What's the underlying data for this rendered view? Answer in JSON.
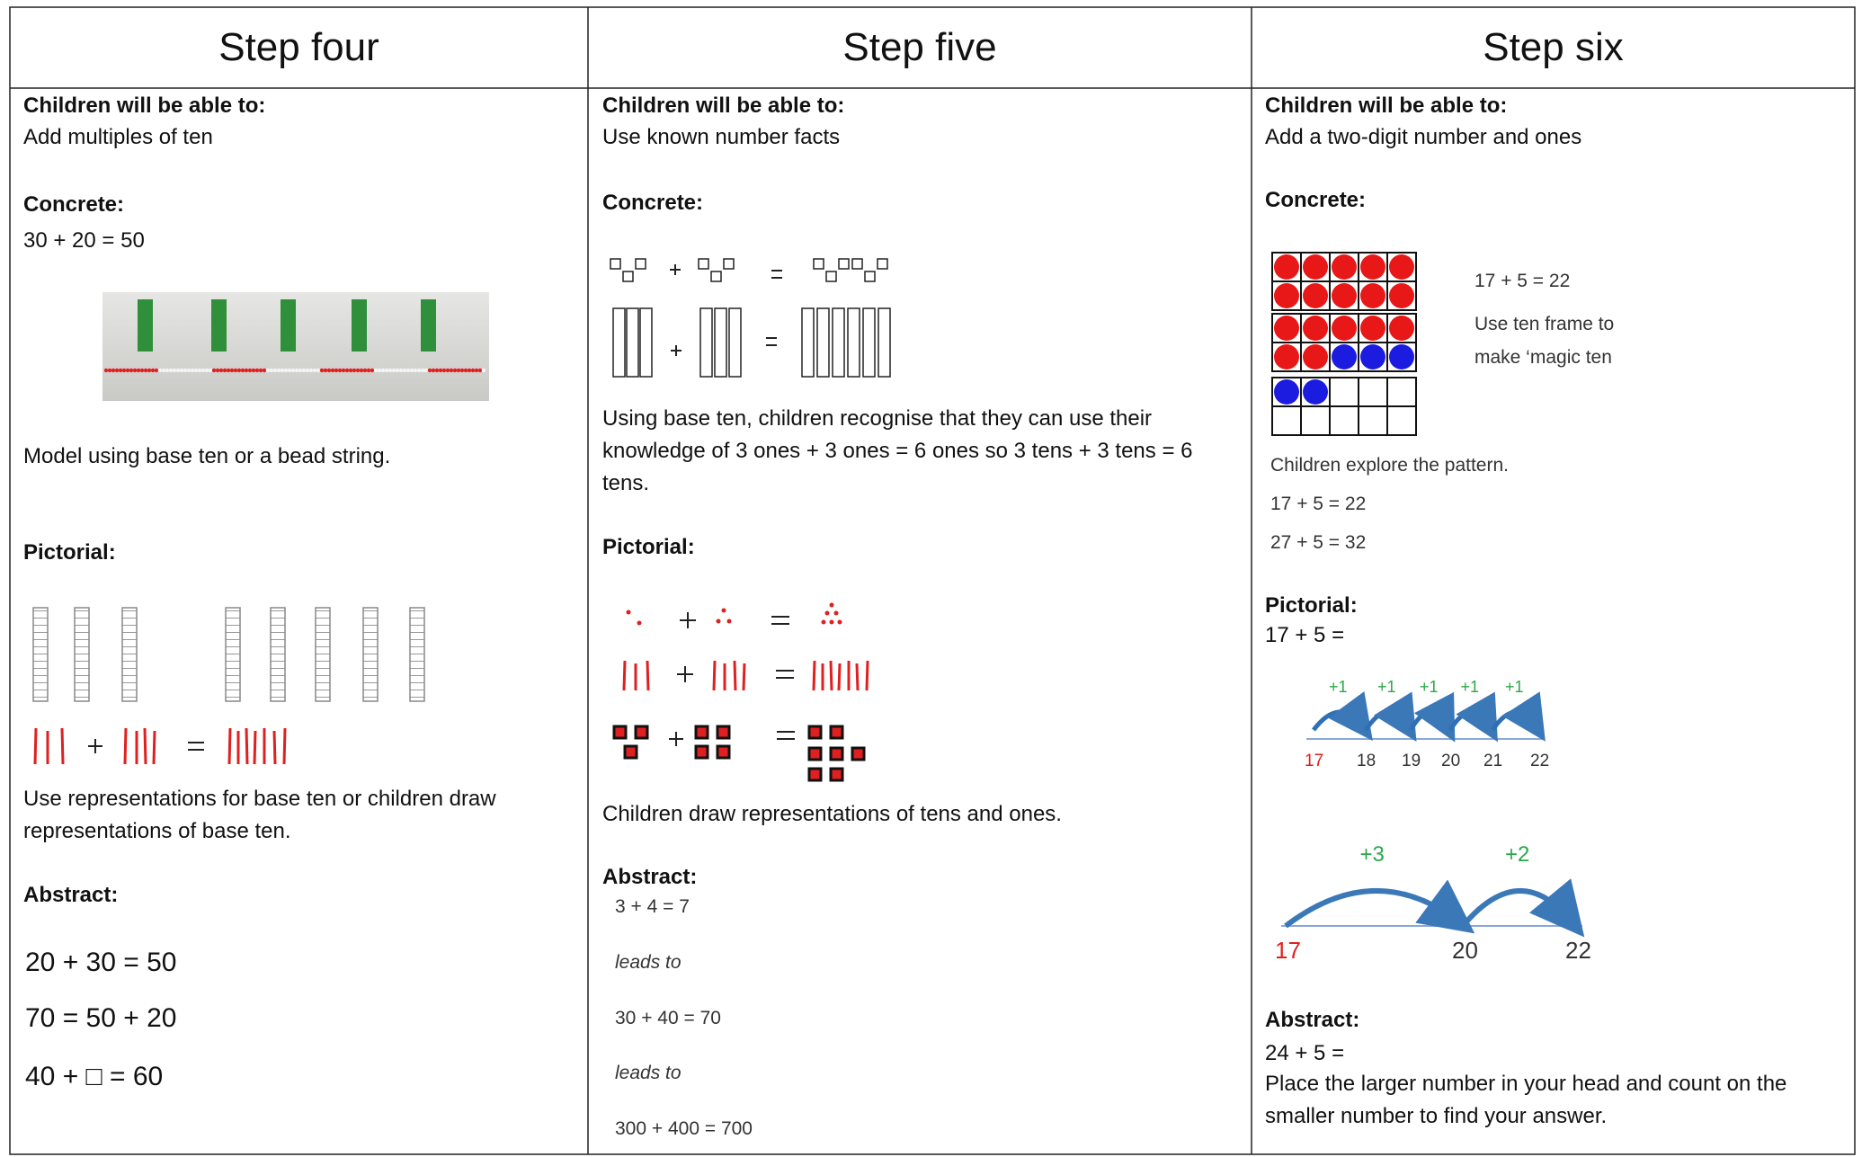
{
  "columns": [
    {
      "heading": "Step four",
      "able_label": "Children will be able to:",
      "able_text": "Add multiples of ten",
      "concrete_label": "Concrete:",
      "concrete_equation": "30 + 20 = 50",
      "concrete_note": "Model using base ten or a bead string.",
      "pictorial_label": "Pictorial:",
      "pictorial_note": "Use representations for base ten or children draw representations of base ten.",
      "abstract_label": "Abstract:",
      "abstract_lines": [
        "20 + 30 = 50",
        "70 = 50 + 20",
        "40 + □ = 60"
      ]
    },
    {
      "heading": "Step five",
      "able_label": "Children will be able to:",
      "able_text": "Use known number facts",
      "concrete_label": "Concrete:",
      "concrete_note": "Using base ten, children recognise that they can use their knowledge of 3 ones + 3 ones = 6 ones so 3 tens + 3 tens = 6 tens.",
      "pictorial_label": "Pictorial:",
      "pictorial_note": "Children draw representations of tens and ones.",
      "abstract_label": "Abstract:",
      "abstract_lines": [
        "3 + 4 = 7",
        "leads to",
        "30 + 40 = 70",
        "leads to",
        "300 + 400 = 700"
      ]
    },
    {
      "heading": "Step six",
      "able_label": "Children will be able to:",
      "able_text": "Add a two-digit number and ones",
      "concrete_label": "Concrete:",
      "frame_equation": "17 + 5 = 22",
      "frame_note": [
        "Use ten frame to",
        "make ‘magic ten"
      ],
      "pattern_note": "Children explore the pattern.",
      "pattern_lines": [
        "17 + 5 = 22",
        "27 + 5 = 32"
      ],
      "pictorial_label": "Pictorial:",
      "pictorial_equation": "17 + 5 =",
      "line_one_jumps": [
        "+1",
        "+1",
        "+1",
        "+1",
        "+1"
      ],
      "line_one_labels": [
        "17",
        "18",
        "19",
        "20",
        "21",
        "22"
      ],
      "line_two_jumps": [
        "+3",
        "+2"
      ],
      "line_two_labels": [
        "17",
        "20",
        "22"
      ],
      "abstract_label": "Abstract:",
      "abstract_equation": "24 + 5 =",
      "abstract_note": "Place the larger number in your head and count on the smaller number to find your answer."
    }
  ]
}
